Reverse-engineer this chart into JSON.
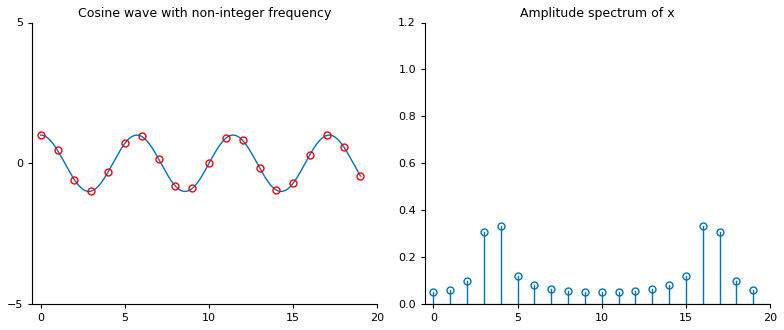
{
  "title_left": "Cosine wave with non-integer frequency",
  "title_right": "Amplitude spectrum of x",
  "N": 20,
  "f0": 3.5,
  "xlim_left": [
    -0.5,
    20
  ],
  "ylim_left": [
    -5,
    5
  ],
  "xlim_right": [
    -0.5,
    20
  ],
  "ylim_right": [
    0,
    1.2
  ],
  "line_color": "#0072BD",
  "marker_color": "#FF0000",
  "stem_color": "#0072BD",
  "yticks_left": [
    -5,
    0,
    5
  ],
  "xticks_left": [
    0,
    5,
    10,
    15,
    20
  ],
  "yticks_right": [
    0,
    0.2,
    0.4,
    0.6,
    0.8,
    1.0,
    1.2
  ],
  "xticks_right": [
    0,
    5,
    10,
    15,
    20
  ],
  "figsize": [
    7.84,
    3.3
  ],
  "dpi": 100
}
